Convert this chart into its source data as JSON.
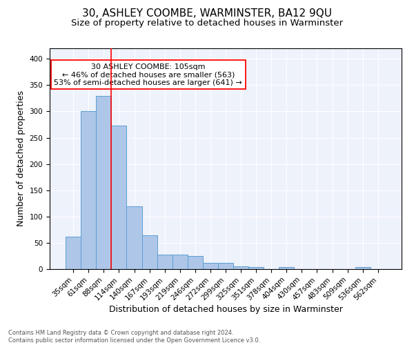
{
  "title": "30, ASHLEY COOMBE, WARMINSTER, BA12 9QU",
  "subtitle": "Size of property relative to detached houses in Warminster",
  "xlabel": "Distribution of detached houses by size in Warminster",
  "ylabel": "Number of detached properties",
  "bin_labels": [
    "35sqm",
    "61sqm",
    "88sqm",
    "114sqm",
    "140sqm",
    "167sqm",
    "193sqm",
    "219sqm",
    "246sqm",
    "272sqm",
    "299sqm",
    "325sqm",
    "351sqm",
    "378sqm",
    "404sqm",
    "430sqm",
    "457sqm",
    "483sqm",
    "509sqm",
    "536sqm",
    "562sqm"
  ],
  "bar_heights": [
    62,
    301,
    330,
    273,
    119,
    64,
    28,
    27,
    25,
    12,
    12,
    5,
    4,
    0,
    4,
    0,
    0,
    0,
    0,
    4,
    0
  ],
  "bar_color": "#aec6e8",
  "bar_edge_color": "#5a9fd4",
  "background_color": "#eef2fb",
  "red_line_x": 2.5,
  "annotation_text": "30 ASHLEY COOMBE: 105sqm\n← 46% of detached houses are smaller (563)\n53% of semi-detached houses are larger (641) →",
  "ylim": [
    0,
    420
  ],
  "yticks": [
    0,
    50,
    100,
    150,
    200,
    250,
    300,
    350,
    400
  ],
  "footer": "Contains HM Land Registry data © Crown copyright and database right 2024.\nContains public sector information licensed under the Open Government Licence v3.0.",
  "title_fontsize": 11,
  "subtitle_fontsize": 9.5,
  "tick_fontsize": 7.5,
  "ylabel_fontsize": 9,
  "xlabel_fontsize": 9,
  "annotation_fontsize": 8
}
